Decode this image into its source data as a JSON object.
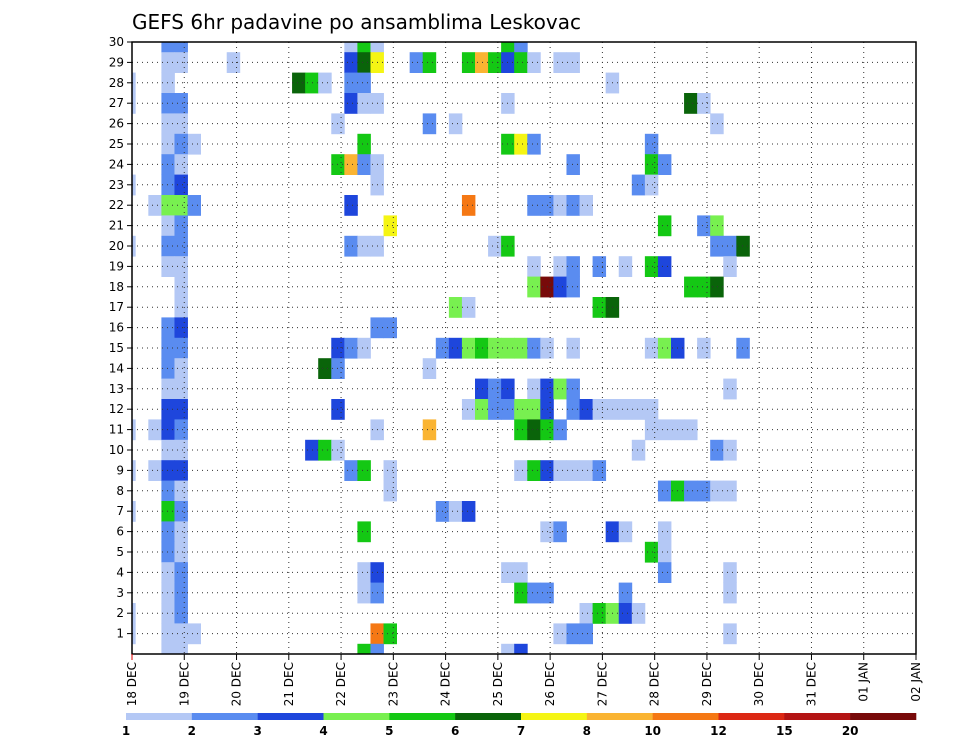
{
  "chart_data": {
    "type": "heatmap",
    "title": "GEFS 6hr padavine po ansamblima Leskovac",
    "xlabel": "",
    "ylabel": "",
    "x_tick_labels": [
      "18 DEC",
      "19 DEC",
      "20 DEC",
      "21 DEC",
      "22 DEC",
      "23 DEC",
      "24 DEC",
      "25 DEC",
      "26 DEC",
      "27 DEC",
      "28 DEC",
      "29 DEC",
      "30 DEC",
      "31 DEC",
      "01 JAN",
      "02 JAN"
    ],
    "y_tick_labels": [
      "1",
      "2",
      "3",
      "4",
      "5",
      "6",
      "7",
      "8",
      "9",
      "10",
      "11",
      "12",
      "13",
      "14",
      "15",
      "16",
      "17",
      "18",
      "19",
      "20",
      "21",
      "22",
      "23",
      "24",
      "25",
      "26",
      "27",
      "28",
      "29",
      "30"
    ],
    "time_step_hours": 6,
    "grid": true,
    "colorbar": {
      "labels": [
        "1",
        "2",
        "3",
        "4",
        "5",
        "6",
        "7",
        "8",
        "10",
        "12",
        "15",
        "20"
      ],
      "colors": [
        "#b4c8f5",
        "#5a8cf0",
        "#1e46dc",
        "#78f050",
        "#14c814",
        "#0a640a",
        "#f5f514",
        "#fab432",
        "#f57814",
        "#dc2814",
        "#b41414",
        "#780a0a"
      ]
    },
    "levels_note": "cell value = color level index 1..12 (1 = 1-2 mm, 12 = >20 mm)",
    "cells": [
      [
        2,
        30,
        2
      ],
      [
        3,
        30,
        2
      ],
      [
        16,
        30,
        1
      ],
      [
        17,
        30,
        5
      ],
      [
        18,
        30,
        1
      ],
      [
        28,
        30,
        5
      ],
      [
        29,
        30,
        2
      ],
      [
        2,
        29,
        1
      ],
      [
        3,
        29,
        1
      ],
      [
        7,
        29,
        1
      ],
      [
        16,
        29,
        3
      ],
      [
        17,
        29,
        6
      ],
      [
        18,
        29,
        7
      ],
      [
        21,
        29,
        2
      ],
      [
        22,
        29,
        5
      ],
      [
        25,
        29,
        5
      ],
      [
        26,
        29,
        8
      ],
      [
        27,
        29,
        5
      ],
      [
        28,
        29,
        3
      ],
      [
        29,
        29,
        5
      ],
      [
        30,
        29,
        1
      ],
      [
        32,
        29,
        1
      ],
      [
        33,
        29,
        1
      ],
      [
        -1,
        28,
        1
      ],
      [
        2,
        28,
        1
      ],
      [
        12,
        28,
        6
      ],
      [
        13,
        28,
        5
      ],
      [
        14,
        28,
        1
      ],
      [
        16,
        28,
        2
      ],
      [
        17,
        28,
        2
      ],
      [
        36,
        28,
        1
      ],
      [
        -1,
        27,
        1
      ],
      [
        2,
        27,
        2
      ],
      [
        3,
        27,
        2
      ],
      [
        16,
        27,
        3
      ],
      [
        17,
        27,
        1
      ],
      [
        18,
        27,
        1
      ],
      [
        28,
        27,
        1
      ],
      [
        42,
        27,
        6
      ],
      [
        43,
        27,
        1
      ],
      [
        2,
        26,
        1
      ],
      [
        3,
        26,
        1
      ],
      [
        15,
        26,
        1
      ],
      [
        22,
        26,
        2
      ],
      [
        24,
        26,
        1
      ],
      [
        44,
        26,
        1
      ],
      [
        4,
        25,
        1
      ],
      [
        2,
        25,
        1
      ],
      [
        3,
        25,
        2
      ],
      [
        17,
        25,
        5
      ],
      [
        28,
        25,
        5
      ],
      [
        29,
        25,
        7
      ],
      [
        30,
        25,
        2
      ],
      [
        39,
        25,
        2
      ],
      [
        2,
        24,
        2
      ],
      [
        3,
        24,
        1
      ],
      [
        15,
        24,
        5
      ],
      [
        16,
        24,
        8
      ],
      [
        17,
        24,
        2
      ],
      [
        18,
        24,
        1
      ],
      [
        33,
        24,
        2
      ],
      [
        39,
        24,
        5
      ],
      [
        40,
        24,
        2
      ],
      [
        -2,
        23,
        1
      ],
      [
        -1,
        23,
        1
      ],
      [
        2,
        23,
        2
      ],
      [
        3,
        23,
        3
      ],
      [
        18,
        23,
        1
      ],
      [
        38,
        23,
        2
      ],
      [
        39,
        23,
        1
      ],
      [
        1,
        22,
        1
      ],
      [
        2,
        22,
        4
      ],
      [
        3,
        22,
        4
      ],
      [
        4,
        22,
        2
      ],
      [
        16,
        22,
        3
      ],
      [
        25,
        22,
        9
      ],
      [
        30,
        22,
        2
      ],
      [
        31,
        22,
        2
      ],
      [
        32,
        22,
        1
      ],
      [
        33,
        22,
        2
      ],
      [
        34,
        22,
        1
      ],
      [
        2,
        21,
        1
      ],
      [
        3,
        21,
        2
      ],
      [
        19,
        21,
        7
      ],
      [
        40,
        21,
        5
      ],
      [
        43,
        21,
        2
      ],
      [
        44,
        21,
        4
      ],
      [
        -1,
        20,
        1
      ],
      [
        2,
        20,
        2
      ],
      [
        3,
        20,
        2
      ],
      [
        16,
        20,
        2
      ],
      [
        17,
        20,
        1
      ],
      [
        18,
        20,
        1
      ],
      [
        27,
        20,
        1
      ],
      [
        28,
        20,
        5
      ],
      [
        44,
        20,
        2
      ],
      [
        45,
        20,
        2
      ],
      [
        46,
        20,
        6
      ],
      [
        2,
        19,
        1
      ],
      [
        3,
        19,
        1
      ],
      [
        30,
        19,
        1
      ],
      [
        32,
        19,
        1
      ],
      [
        33,
        19,
        2
      ],
      [
        35,
        19,
        2
      ],
      [
        37,
        19,
        1
      ],
      [
        39,
        19,
        5
      ],
      [
        40,
        19,
        3
      ],
      [
        45,
        19,
        1
      ],
      [
        3,
        18,
        1
      ],
      [
        30,
        18,
        4
      ],
      [
        31,
        18,
        12
      ],
      [
        32,
        18,
        3
      ],
      [
        33,
        18,
        2
      ],
      [
        42,
        18,
        5
      ],
      [
        43,
        18,
        5
      ],
      [
        44,
        18,
        6
      ],
      [
        3,
        17,
        1
      ],
      [
        24,
        17,
        4
      ],
      [
        25,
        17,
        1
      ],
      [
        35,
        17,
        5
      ],
      [
        36,
        17,
        6
      ],
      [
        2,
        16,
        2
      ],
      [
        3,
        16,
        3
      ],
      [
        18,
        16,
        2
      ],
      [
        19,
        16,
        2
      ],
      [
        2,
        15,
        2
      ],
      [
        3,
        15,
        2
      ],
      [
        15,
        15,
        3
      ],
      [
        16,
        15,
        2
      ],
      [
        17,
        15,
        1
      ],
      [
        23,
        15,
        2
      ],
      [
        24,
        15,
        3
      ],
      [
        25,
        15,
        4
      ],
      [
        26,
        15,
        5
      ],
      [
        27,
        15,
        4
      ],
      [
        28,
        15,
        4
      ],
      [
        29,
        15,
        4
      ],
      [
        30,
        15,
        2
      ],
      [
        31,
        15,
        1
      ],
      [
        33,
        15,
        1
      ],
      [
        39,
        15,
        1
      ],
      [
        40,
        15,
        4
      ],
      [
        41,
        15,
        3
      ],
      [
        43,
        15,
        1
      ],
      [
        46,
        15,
        2
      ],
      [
        2,
        14,
        2
      ],
      [
        3,
        14,
        1
      ],
      [
        14,
        14,
        6
      ],
      [
        15,
        14,
        2
      ],
      [
        22,
        14,
        1
      ],
      [
        2,
        13,
        1
      ],
      [
        3,
        13,
        1
      ],
      [
        26,
        13,
        3
      ],
      [
        27,
        13,
        2
      ],
      [
        28,
        13,
        3
      ],
      [
        30,
        13,
        1
      ],
      [
        31,
        13,
        3
      ],
      [
        32,
        13,
        4
      ],
      [
        33,
        13,
        2
      ],
      [
        45,
        13,
        1
      ],
      [
        2,
        12,
        3
      ],
      [
        3,
        12,
        3
      ],
      [
        15,
        12,
        3
      ],
      [
        25,
        12,
        1
      ],
      [
        26,
        12,
        4
      ],
      [
        27,
        12,
        2
      ],
      [
        28,
        12,
        2
      ],
      [
        29,
        12,
        4
      ],
      [
        30,
        12,
        4
      ],
      [
        31,
        12,
        3
      ],
      [
        33,
        12,
        2
      ],
      [
        34,
        12,
        3
      ],
      [
        35,
        12,
        1
      ],
      [
        36,
        12,
        1
      ],
      [
        37,
        12,
        1
      ],
      [
        38,
        12,
        1
      ],
      [
        39,
        12,
        1
      ],
      [
        -2,
        11,
        1
      ],
      [
        -1,
        11,
        1
      ],
      [
        1,
        11,
        1
      ],
      [
        2,
        11,
        3
      ],
      [
        3,
        11,
        2
      ],
      [
        18,
        11,
        1
      ],
      [
        22,
        11,
        8
      ],
      [
        29,
        11,
        5
      ],
      [
        30,
        11,
        6
      ],
      [
        31,
        11,
        5
      ],
      [
        32,
        11,
        2
      ],
      [
        39,
        11,
        1
      ],
      [
        40,
        11,
        1
      ],
      [
        41,
        11,
        1
      ],
      [
        42,
        11,
        1
      ],
      [
        2,
        10,
        1
      ],
      [
        3,
        10,
        1
      ],
      [
        13,
        10,
        3
      ],
      [
        14,
        10,
        5
      ],
      [
        15,
        10,
        1
      ],
      [
        38,
        10,
        1
      ],
      [
        44,
        10,
        2
      ],
      [
        45,
        10,
        1
      ],
      [
        -1,
        9,
        1
      ],
      [
        1,
        9,
        1
      ],
      [
        2,
        9,
        3
      ],
      [
        3,
        9,
        3
      ],
      [
        16,
        9,
        2
      ],
      [
        17,
        9,
        5
      ],
      [
        19,
        9,
        1
      ],
      [
        29,
        9,
        1
      ],
      [
        30,
        9,
        5
      ],
      [
        31,
        9,
        3
      ],
      [
        32,
        9,
        1
      ],
      [
        33,
        9,
        1
      ],
      [
        34,
        9,
        1
      ],
      [
        35,
        9,
        2
      ],
      [
        2,
        8,
        2
      ],
      [
        3,
        8,
        1
      ],
      [
        19,
        8,
        1
      ],
      [
        40,
        8,
        2
      ],
      [
        41,
        8,
        5
      ],
      [
        42,
        8,
        2
      ],
      [
        43,
        8,
        2
      ],
      [
        44,
        8,
        1
      ],
      [
        45,
        8,
        1
      ],
      [
        -1,
        7,
        1
      ],
      [
        2,
        7,
        5
      ],
      [
        3,
        7,
        2
      ],
      [
        23,
        7,
        2
      ],
      [
        24,
        7,
        1
      ],
      [
        25,
        7,
        3
      ],
      [
        2,
        6,
        2
      ],
      [
        3,
        6,
        1
      ],
      [
        17,
        6,
        5
      ],
      [
        31,
        6,
        1
      ],
      [
        32,
        6,
        2
      ],
      [
        36,
        6,
        3
      ],
      [
        37,
        6,
        1
      ],
      [
        40,
        6,
        1
      ],
      [
        2,
        5,
        2
      ],
      [
        3,
        5,
        1
      ],
      [
        39,
        5,
        5
      ],
      [
        40,
        5,
        1
      ],
      [
        2,
        4,
        1
      ],
      [
        3,
        4,
        2
      ],
      [
        17,
        4,
        1
      ],
      [
        18,
        4,
        3
      ],
      [
        28,
        4,
        1
      ],
      [
        29,
        4,
        1
      ],
      [
        40,
        4,
        2
      ],
      [
        45,
        4,
        1
      ],
      [
        2,
        3,
        1
      ],
      [
        3,
        3,
        2
      ],
      [
        17,
        3,
        1
      ],
      [
        18,
        3,
        2
      ],
      [
        29,
        3,
        5
      ],
      [
        30,
        3,
        2
      ],
      [
        31,
        3,
        2
      ],
      [
        37,
        3,
        2
      ],
      [
        45,
        3,
        1
      ],
      [
        -1,
        2,
        1
      ],
      [
        2,
        2,
        1
      ],
      [
        3,
        2,
        2
      ],
      [
        34,
        2,
        1
      ],
      [
        35,
        2,
        5
      ],
      [
        36,
        2,
        4
      ],
      [
        37,
        2,
        3
      ],
      [
        38,
        2,
        1
      ],
      [
        -1,
        1,
        1
      ],
      [
        2,
        1,
        1
      ],
      [
        3,
        1,
        1
      ],
      [
        4,
        1,
        1
      ],
      [
        18,
        1,
        9
      ],
      [
        19,
        1,
        5
      ],
      [
        32,
        1,
        1
      ],
      [
        33,
        1,
        2
      ],
      [
        34,
        1,
        2
      ],
      [
        45,
        1,
        1
      ],
      [
        2,
        0,
        1
      ],
      [
        3,
        0,
        1
      ],
      [
        17,
        0,
        5
      ],
      [
        18,
        0,
        2
      ],
      [
        28,
        0,
        1
      ],
      [
        29,
        0,
        3
      ]
    ]
  }
}
